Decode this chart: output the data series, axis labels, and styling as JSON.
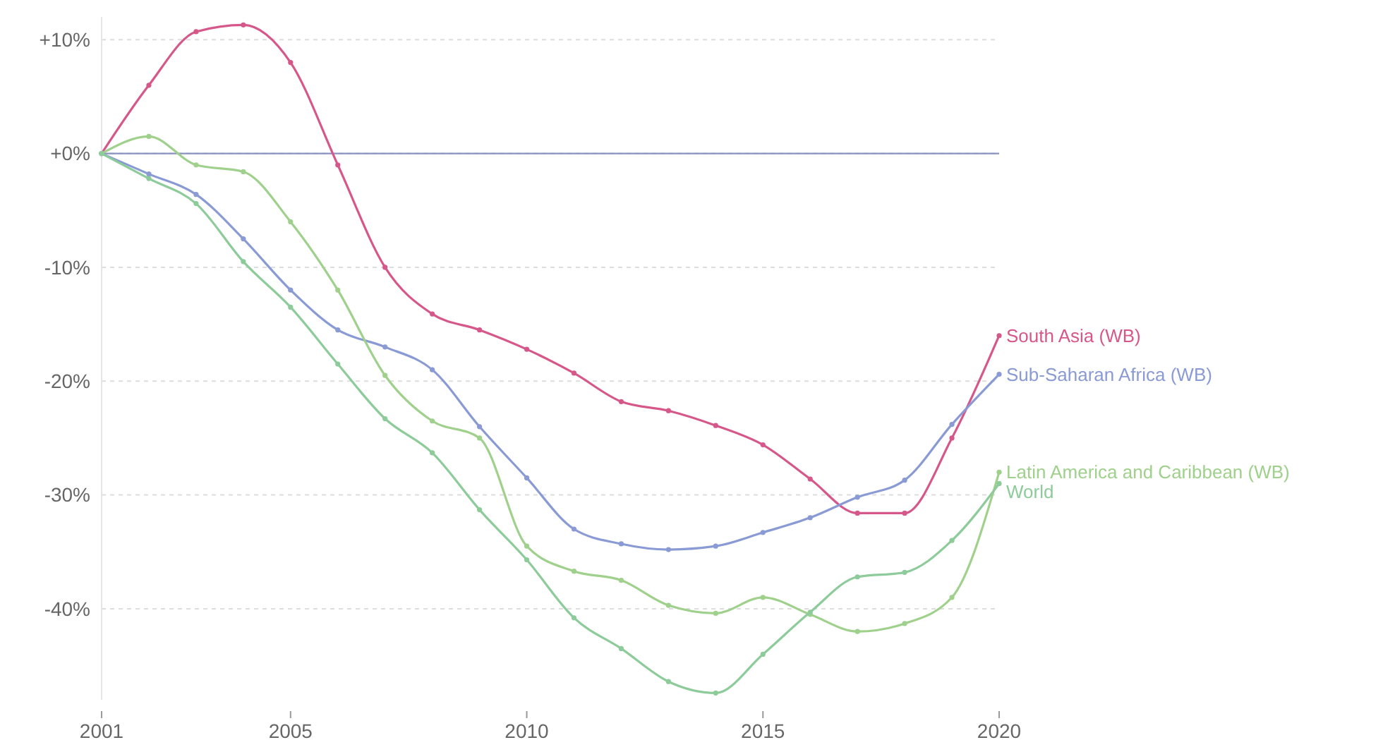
{
  "chart_data": {
    "type": "line",
    "x": [
      2001,
      2002,
      2003,
      2004,
      2005,
      2006,
      2007,
      2008,
      2009,
      2010,
      2011,
      2012,
      2013,
      2014,
      2015,
      2016,
      2017,
      2018,
      2019,
      2020
    ],
    "series": [
      {
        "name": "South Asia (WB)",
        "color": "#d6588a",
        "values": [
          0,
          6,
          10.7,
          11.3,
          8,
          -1,
          -10,
          -14.1,
          -15.5,
          -17.2,
          -19.3,
          -21.8,
          -22.6,
          -23.9,
          -25.6,
          -28.6,
          -31.6,
          -31.6,
          -25,
          -16
        ]
      },
      {
        "name": "Sub-Saharan Africa (WB)",
        "color": "#8a9ad4",
        "values": [
          0,
          -1.8,
          -3.6,
          -7.5,
          -12,
          -15.5,
          -17,
          -19,
          -24,
          -28.5,
          -33,
          -34.3,
          -34.8,
          -34.5,
          -33.3,
          -32,
          -30.2,
          -28.7,
          -23.8,
          -19.4
        ]
      },
      {
        "name": "Latin America and Caribbean (WB)",
        "color": "#9fd08c",
        "values": [
          0,
          1.5,
          -1,
          -1.6,
          -6,
          -12,
          -19.5,
          -23.5,
          -25,
          -34.5,
          -36.7,
          -37.5,
          -39.7,
          -40.4,
          -39,
          -40.5,
          -42,
          -41.3,
          -39,
          -28
        ]
      },
      {
        "name": "World",
        "color": "#8dcb9a",
        "values": [
          0,
          -2.2,
          -4.4,
          -9.5,
          -13.5,
          -18.5,
          -23.3,
          -26.3,
          -31.3,
          -35.7,
          -40.8,
          -43.5,
          -46.4,
          -47.4,
          -44,
          -40.3,
          -37.2,
          -36.8,
          -34,
          -29
        ]
      }
    ],
    "xlim": [
      2001,
      2020
    ],
    "xticks": [
      2001,
      2005,
      2010,
      2015,
      2020
    ],
    "ylim": [
      -48,
      12
    ],
    "yticks": [
      {
        "value": 10,
        "label": "+10%"
      },
      {
        "value": 0,
        "label": "+0%"
      },
      {
        "value": -10,
        "label": "-10%"
      },
      {
        "value": -20,
        "label": "-20%"
      },
      {
        "value": -30,
        "label": "-30%"
      },
      {
        "value": -40,
        "label": "-40%"
      }
    ],
    "grid": "y",
    "ref_lines": [
      {
        "axis": "y",
        "value": 0,
        "color": "#8a92c0"
      }
    ],
    "marker": "circle",
    "line_style": "solid",
    "legend": false
  }
}
